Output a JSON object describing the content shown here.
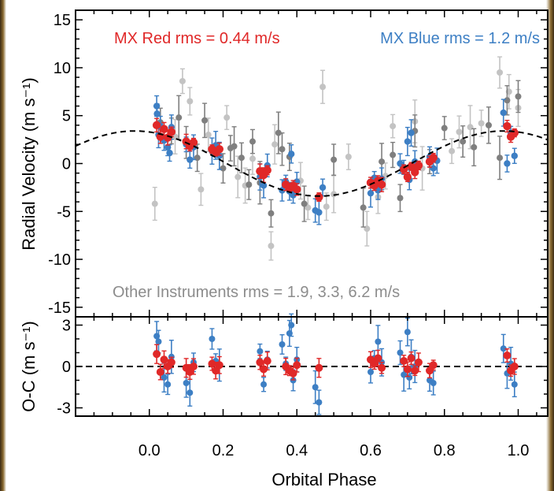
{
  "chart_data": [
    {
      "type": "scatter",
      "panel": "top",
      "title": "",
      "xlabel": "",
      "ylabel": "Radial Velocity (m s⁻¹)",
      "xlim": [
        -0.2,
        1.08
      ],
      "ylim": [
        -16,
        16
      ],
      "yticks": [
        15,
        10,
        5,
        0,
        -5,
        -10,
        -15
      ],
      "grid": false,
      "annotations": [
        {
          "text": "MX Red rms = 0.44 m/s",
          "color": "#e02828"
        },
        {
          "text": "MX Blue rms = 1.2 m/s",
          "color": "#3d7fc4"
        },
        {
          "text": "Other Instruments rms = 1.9, 3.3, 6.2 m/s",
          "color": "#8c8c8c"
        }
      ],
      "model": {
        "name": "",
        "style": "dashed",
        "color": "#000000",
        "amplitude": 3.4,
        "phase_of_max": 0.96
      },
      "series": [
        {
          "name": "MX Red",
          "color": "#e02828",
          "x": [
            0.02,
            0.03,
            0.04,
            0.05,
            0.06,
            0.1,
            0.11,
            0.12,
            0.17,
            0.18,
            0.19,
            0.3,
            0.31,
            0.32,
            0.37,
            0.38,
            0.39,
            0.4,
            0.46,
            0.6,
            0.61,
            0.62,
            0.63,
            0.69,
            0.7,
            0.71,
            0.72,
            0.73,
            0.76,
            0.77,
            0.97,
            0.98,
            0.99
          ],
          "y": [
            4.0,
            2.8,
            3.6,
            2.7,
            3.3,
            2.3,
            1.8,
            2.2,
            1.5,
            1.2,
            1.5,
            -0.8,
            -1.2,
            -0.7,
            -2.2,
            -2.5,
            -2.3,
            -2.7,
            -3.5,
            -2.0,
            -2.3,
            -1.8,
            -2.2,
            -0.6,
            -1.4,
            -0.3,
            -0.9,
            -0.2,
            0.2,
            0.6,
            3.9,
            2.8,
            3.2
          ]
        },
        {
          "name": "MX Blue",
          "color": "#3d7fc4",
          "x": [
            0.02,
            0.021,
            0.025,
            0.03,
            0.04,
            0.05,
            0.055,
            0.06,
            0.1,
            0.11,
            0.12,
            0.17,
            0.18,
            0.19,
            0.3,
            0.31,
            0.32,
            0.36,
            0.37,
            0.38,
            0.385,
            0.39,
            0.4,
            0.45,
            0.46,
            0.47,
            0.6,
            0.61,
            0.62,
            0.63,
            0.68,
            0.69,
            0.7,
            0.705,
            0.71,
            0.72,
            0.76,
            0.77,
            0.78,
            0.96,
            0.97,
            0.98,
            0.99
          ],
          "y": [
            6.0,
            5.2,
            3.0,
            3.9,
            2.4,
            1.7,
            1.1,
            3.8,
            2.0,
            0.4,
            1.7,
            1.3,
            1.9,
            0.8,
            -1.4,
            -2.3,
            -0.2,
            -2.8,
            -1.9,
            -2.9,
            1.0,
            -3.3,
            -1.9,
            -4.9,
            -5.1,
            -2.5,
            -3.1,
            -1.5,
            -2.8,
            -1.6,
            0.0,
            -0.4,
            2.3,
            -1.7,
            3.2,
            0.2,
            0.7,
            -0.5,
            0.3,
            5.3,
            0.0,
            3.2,
            0.8
          ]
        },
        {
          "name": "Other (dark gray)",
          "color": "#7f7f7f",
          "x": [
            0.03,
            0.06,
            0.08,
            0.1,
            0.13,
            0.15,
            0.2,
            0.22,
            0.23,
            0.25,
            0.27,
            0.28,
            0.3,
            0.33,
            0.35,
            0.36,
            0.38,
            0.42,
            0.5,
            0.58,
            0.63,
            0.66,
            0.68,
            0.72,
            0.76,
            0.8,
            0.85,
            0.88,
            0.92,
            0.95,
            0.97,
            1.0
          ],
          "y": [
            4.3,
            3.4,
            4.8,
            2.2,
            0.6,
            4.5,
            -0.5,
            1.6,
            1.8,
            0.6,
            -2.2,
            2.3,
            -2.0,
            -5.2,
            3.2,
            1.5,
            0.7,
            -4.2,
            0.4,
            -4.6,
            0.2,
            0.9,
            -3.6,
            3.4,
            0.2,
            3.7,
            2.3,
            1.7,
            4.0,
            0.6,
            6.6,
            7.0
          ]
        },
        {
          "name": "Other (light gray)",
          "color": "#c3c3c3",
          "x": [
            0.015,
            0.07,
            0.09,
            0.11,
            0.14,
            0.16,
            0.21,
            0.24,
            0.26,
            0.28,
            0.33,
            0.34,
            0.41,
            0.43,
            0.47,
            0.48,
            0.5,
            0.54,
            0.59,
            0.62,
            0.64,
            0.66,
            0.72,
            0.74,
            0.82,
            0.84,
            0.87,
            0.9,
            0.95,
            0.975,
            1.0
          ],
          "y": [
            -4.2,
            2.8,
            8.6,
            6.5,
            -2.7,
            3.0,
            4.8,
            -1.4,
            -2.3,
            0.5,
            -8.6,
            2.0,
            -1.8,
            -4.6,
            8.0,
            -4.5,
            -3.2,
            0.7,
            -6.8,
            -3.5,
            -1.3,
            3.9,
            4.4,
            -0.5,
            1.3,
            3.3,
            3.8,
            4.2,
            9.5,
            7.5,
            5.8
          ]
        }
      ]
    },
    {
      "type": "scatter",
      "panel": "bottom",
      "title": "",
      "xlabel": "Orbital Phase",
      "ylabel": "O-C (m s⁻¹)",
      "xlim": [
        -0.2,
        1.08
      ],
      "ylim": [
        -3.6,
        3.6
      ],
      "xticks": [
        0.0,
        0.2,
        0.4,
        0.6,
        0.8,
        1.0
      ],
      "xtick_labels": [
        "0.0",
        "0.2",
        "0.4",
        "0.6",
        "0.8",
        "1.0"
      ],
      "yticks": [
        3,
        0,
        -3
      ],
      "zero_line": "dashed",
      "series": [
        {
          "name": "MX Blue",
          "color": "#3d7fc4",
          "x": [
            0.02,
            0.025,
            0.04,
            0.05,
            0.06,
            0.1,
            0.11,
            0.12,
            0.17,
            0.18,
            0.19,
            0.3,
            0.31,
            0.32,
            0.36,
            0.37,
            0.38,
            0.385,
            0.39,
            0.4,
            0.45,
            0.46,
            0.6,
            0.61,
            0.62,
            0.63,
            0.68,
            0.69,
            0.7,
            0.705,
            0.71,
            0.72,
            0.76,
            0.77,
            0.96,
            0.97,
            0.98,
            0.99
          ],
          "y": [
            2.2,
            1.8,
            -0.8,
            -1.3,
            0.7,
            -1.2,
            -1.9,
            0.3,
            2.0,
            0.4,
            0.1,
            1.1,
            -1.3,
            0.5,
            1.6,
            0.2,
            2.4,
            3.0,
            -1.0,
            0.5,
            -1.5,
            -2.6,
            -0.4,
            0.6,
            1.8,
            0.3,
            1.0,
            -0.6,
            2.5,
            -0.8,
            0.7,
            0.0,
            -1.0,
            -1.2,
            1.3,
            -0.5,
            0.2,
            -1.3
          ]
        },
        {
          "name": "MX Red",
          "color": "#e02828",
          "x": [
            0.02,
            0.03,
            0.04,
            0.05,
            0.06,
            0.1,
            0.11,
            0.12,
            0.17,
            0.18,
            0.19,
            0.3,
            0.31,
            0.32,
            0.37,
            0.38,
            0.39,
            0.4,
            0.46,
            0.6,
            0.61,
            0.62,
            0.63,
            0.69,
            0.7,
            0.71,
            0.72,
            0.73,
            0.76,
            0.77,
            0.97,
            0.98,
            0.99
          ],
          "y": [
            0.9,
            -0.4,
            0.5,
            0.0,
            0.3,
            -0.1,
            -0.4,
            0.0,
            0.2,
            -0.3,
            0.1,
            0.3,
            -0.2,
            0.4,
            0.0,
            -0.3,
            -0.5,
            0.1,
            -0.1,
            0.5,
            0.2,
            0.6,
            -0.1,
            0.4,
            -0.2,
            0.6,
            -0.3,
            0.3,
            -0.3,
            0.1,
            0.8,
            -0.3,
            0.0
          ]
        }
      ]
    }
  ]
}
